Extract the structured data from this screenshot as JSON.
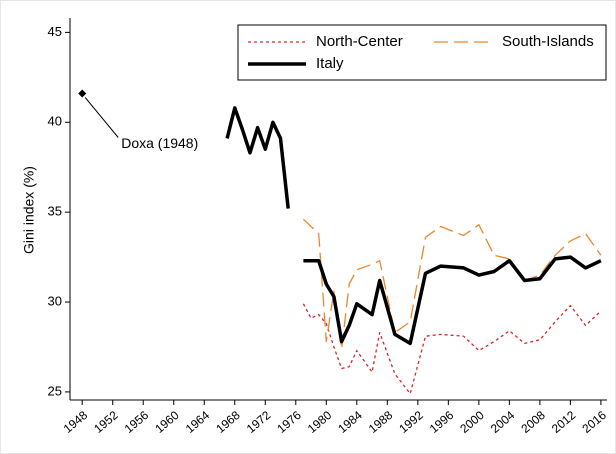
{
  "chart_data": {
    "type": "line",
    "y_label": "Gini index (%)",
    "xlim": [
      1946.4,
      2016.8
    ],
    "ylim": [
      24.55,
      45.8
    ],
    "xticks": [
      1948,
      1952,
      1956,
      1960,
      1964,
      1968,
      1972,
      1976,
      1980,
      1984,
      1988,
      1992,
      1996,
      2000,
      2004,
      2008,
      2012,
      2016
    ],
    "yticks": [
      25,
      30,
      35,
      40,
      45
    ],
    "grid": false,
    "legend": "top-right",
    "series": [
      {
        "name": "North-Center",
        "color": "#d62728",
        "style": "dotted",
        "x": [
          1977,
          1978,
          1979,
          1980,
          1981,
          1982,
          1983,
          1984,
          1986,
          1987,
          1989,
          1991,
          1993,
          1995,
          1998,
          2000,
          2002,
          2004,
          2006,
          2008,
          2010,
          2012,
          2014,
          2016
        ],
        "values": [
          29.9,
          29.1,
          29.3,
          28.8,
          27.5,
          26.3,
          26.4,
          27.3,
          26.1,
          28.3,
          26.0,
          24.9,
          28.1,
          28.2,
          28.1,
          27.3,
          27.8,
          28.4,
          27.7,
          27.9,
          28.9,
          29.8,
          28.7,
          29.5
        ]
      },
      {
        "name": "South-Islands",
        "color": "#e8892b",
        "style": "dashed",
        "x": [
          1977,
          1979,
          1980,
          1981,
          1982,
          1983,
          1984,
          1986,
          1987,
          1989,
          1991,
          1993,
          1995,
          1998,
          2000,
          2002,
          2004,
          2006,
          2008,
          2010,
          2012,
          2014,
          2016
        ],
        "values": [
          34.6,
          33.8,
          27.8,
          30.6,
          27.4,
          31.0,
          31.8,
          32.1,
          32.3,
          28.3,
          28.9,
          33.6,
          34.2,
          33.7,
          34.3,
          32.6,
          32.4,
          31.2,
          31.5,
          32.6,
          33.4,
          33.8,
          32.6
        ]
      },
      {
        "name": "Italy",
        "color": "#000000",
        "style": "solid",
        "x": [
          1967,
          1968,
          1969,
          1970,
          1971,
          1972,
          1973,
          1974,
          1975,
          1976,
          1977,
          1979,
          1980,
          1981,
          1982,
          1983,
          1984,
          1986,
          1987,
          1989,
          1991,
          1993,
          1995,
          1998,
          2000,
          2002,
          2004,
          2006,
          2008,
          2010,
          2012,
          2014,
          2016
        ],
        "values": [
          39.1,
          40.8,
          39.6,
          38.3,
          39.7,
          38.5,
          40.0,
          39.1,
          35.2,
          null,
          32.3,
          32.3,
          31.0,
          30.3,
          27.8,
          28.7,
          29.9,
          29.3,
          31.2,
          28.2,
          27.7,
          31.6,
          32.0,
          31.9,
          31.5,
          31.7,
          32.3,
          31.2,
          31.3,
          32.4,
          32.5,
          31.9,
          32.3
        ]
      }
    ],
    "annotation": {
      "text": "Doxa (1948)",
      "x": 1948,
      "y": 41.6
    }
  }
}
